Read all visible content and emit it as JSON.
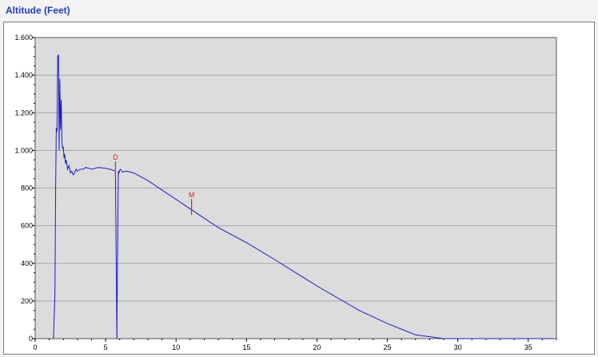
{
  "title": "Altitude (Feet)",
  "chart_data": {
    "type": "line",
    "title": "Altitude (Feet)",
    "xlabel": "",
    "ylabel": "",
    "xlim": [
      0,
      37
    ],
    "ylim": [
      0,
      1600
    ],
    "x_ticks": [
      0,
      5,
      10,
      15,
      20,
      25,
      30,
      35
    ],
    "y_ticks": [
      0,
      200,
      400,
      600,
      800,
      1000,
      1200,
      1400,
      1600
    ],
    "y_tick_labels": [
      "0",
      "200",
      "400",
      "600",
      "800",
      "1.000",
      "1.200",
      "1.400",
      "1.600"
    ],
    "grid": true,
    "plot_background": "#dcdcdc",
    "series": [
      {
        "color": "#1a1acc",
        "x": [
          1.3,
          1.4,
          1.45,
          1.5,
          1.55,
          1.6,
          1.65,
          1.7,
          1.75,
          1.8,
          1.85,
          1.9,
          1.95,
          2.0,
          2.05,
          2.1,
          2.15,
          2.2,
          2.3,
          2.4,
          2.5,
          2.6,
          2.7,
          2.8,
          2.9,
          3.0,
          3.2,
          3.4,
          3.6,
          3.8,
          4.0,
          4.5,
          5.0,
          5.3,
          5.7,
          5.75,
          5.8,
          5.85,
          5.9,
          5.95,
          6.0,
          6.05,
          6.2,
          6.5,
          7.0,
          8.0,
          9.0,
          10.0,
          11.0,
          12.0,
          13.0,
          15.0,
          17.0,
          20.0,
          23.0,
          25.0,
          27.0,
          29.0,
          30.0,
          30.6,
          31.0,
          33.0,
          35.0,
          36.8
        ],
        "y": [
          0,
          240,
          800,
          1120,
          1100,
          1500,
          1510,
          1000,
          1380,
          1110,
          1270,
          1040,
          1010,
          1020,
          960,
          980,
          930,
          950,
          900,
          920,
          880,
          890,
          870,
          880,
          900,
          890,
          900,
          900,
          910,
          905,
          900,
          910,
          905,
          900,
          890,
          450,
          0,
          450,
          890,
          880,
          895,
          900,
          885,
          890,
          880,
          840,
          790,
          740,
          690,
          640,
          590,
          510,
          420,
          280,
          150,
          80,
          20,
          0,
          0,
          0,
          0,
          0,
          0,
          0
        ]
      }
    ],
    "markers": [
      {
        "label": "D",
        "x": 5.7,
        "y": 900,
        "color": "#e02020"
      },
      {
        "label": "M",
        "x": 11.1,
        "y": 700,
        "color": "#e02020"
      }
    ]
  }
}
